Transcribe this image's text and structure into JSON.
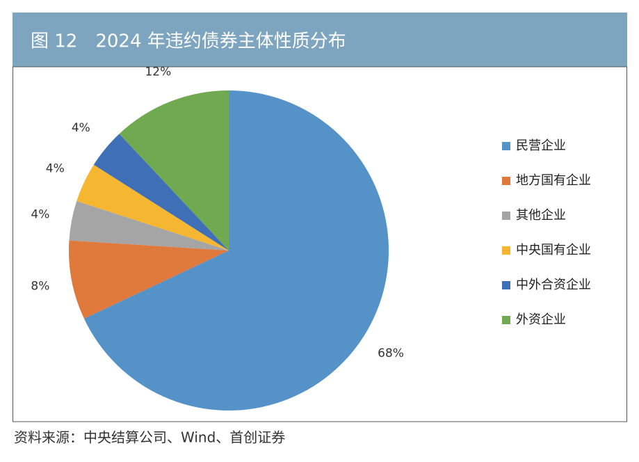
{
  "chart_data": {
    "type": "pie",
    "title": "图 12　2024 年违约债券主体性质分布",
    "source": "资料来源：中央结算公司、Wind、首创证券",
    "categories": [
      "民营企业",
      "地方国有企业",
      "其他企业",
      "中央国有企业",
      "中外合资企业",
      "外资企业"
    ],
    "values": [
      68,
      8,
      4,
      4,
      4,
      12
    ],
    "value_labels": [
      "68%",
      "8%",
      "4%",
      "4%",
      "4%",
      "12%"
    ],
    "colors": [
      "#5592c8",
      "#e07a3c",
      "#a5a5a5",
      "#f5b731",
      "#3f6fb6",
      "#70a950"
    ],
    "legend": "right"
  }
}
